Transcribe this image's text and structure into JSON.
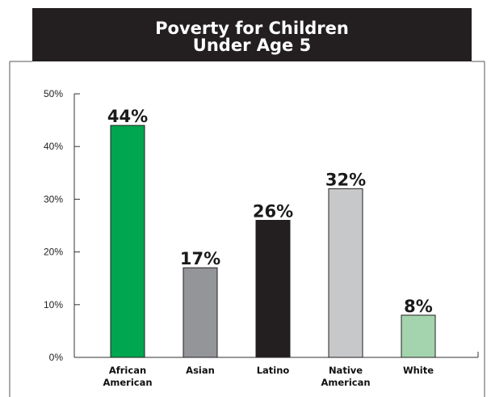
{
  "chart_data": {
    "type": "bar",
    "title_lines": [
      "Poverty for Children",
      "Under Age 5"
    ],
    "categories": [
      [
        "African",
        "American"
      ],
      [
        "Asian"
      ],
      [
        "Latino"
      ],
      [
        "Native",
        "American"
      ],
      [
        "White"
      ]
    ],
    "values": [
      44,
      17,
      26,
      32,
      8
    ],
    "value_labels": [
      "44%",
      "17%",
      "26%",
      "32%",
      "8%"
    ],
    "colors": [
      "#00a650",
      "#939598",
      "#231f20",
      "#c7c8ca",
      "#a4d4ae"
    ],
    "yticks": [
      0,
      10,
      20,
      30,
      40,
      50
    ],
    "ytick_labels": [
      "0%",
      "10%",
      "20%",
      "30%",
      "40%",
      "50%"
    ],
    "ylim": [
      0,
      50
    ],
    "title_bg": "#231f20",
    "grid": false,
    "legend": false
  }
}
